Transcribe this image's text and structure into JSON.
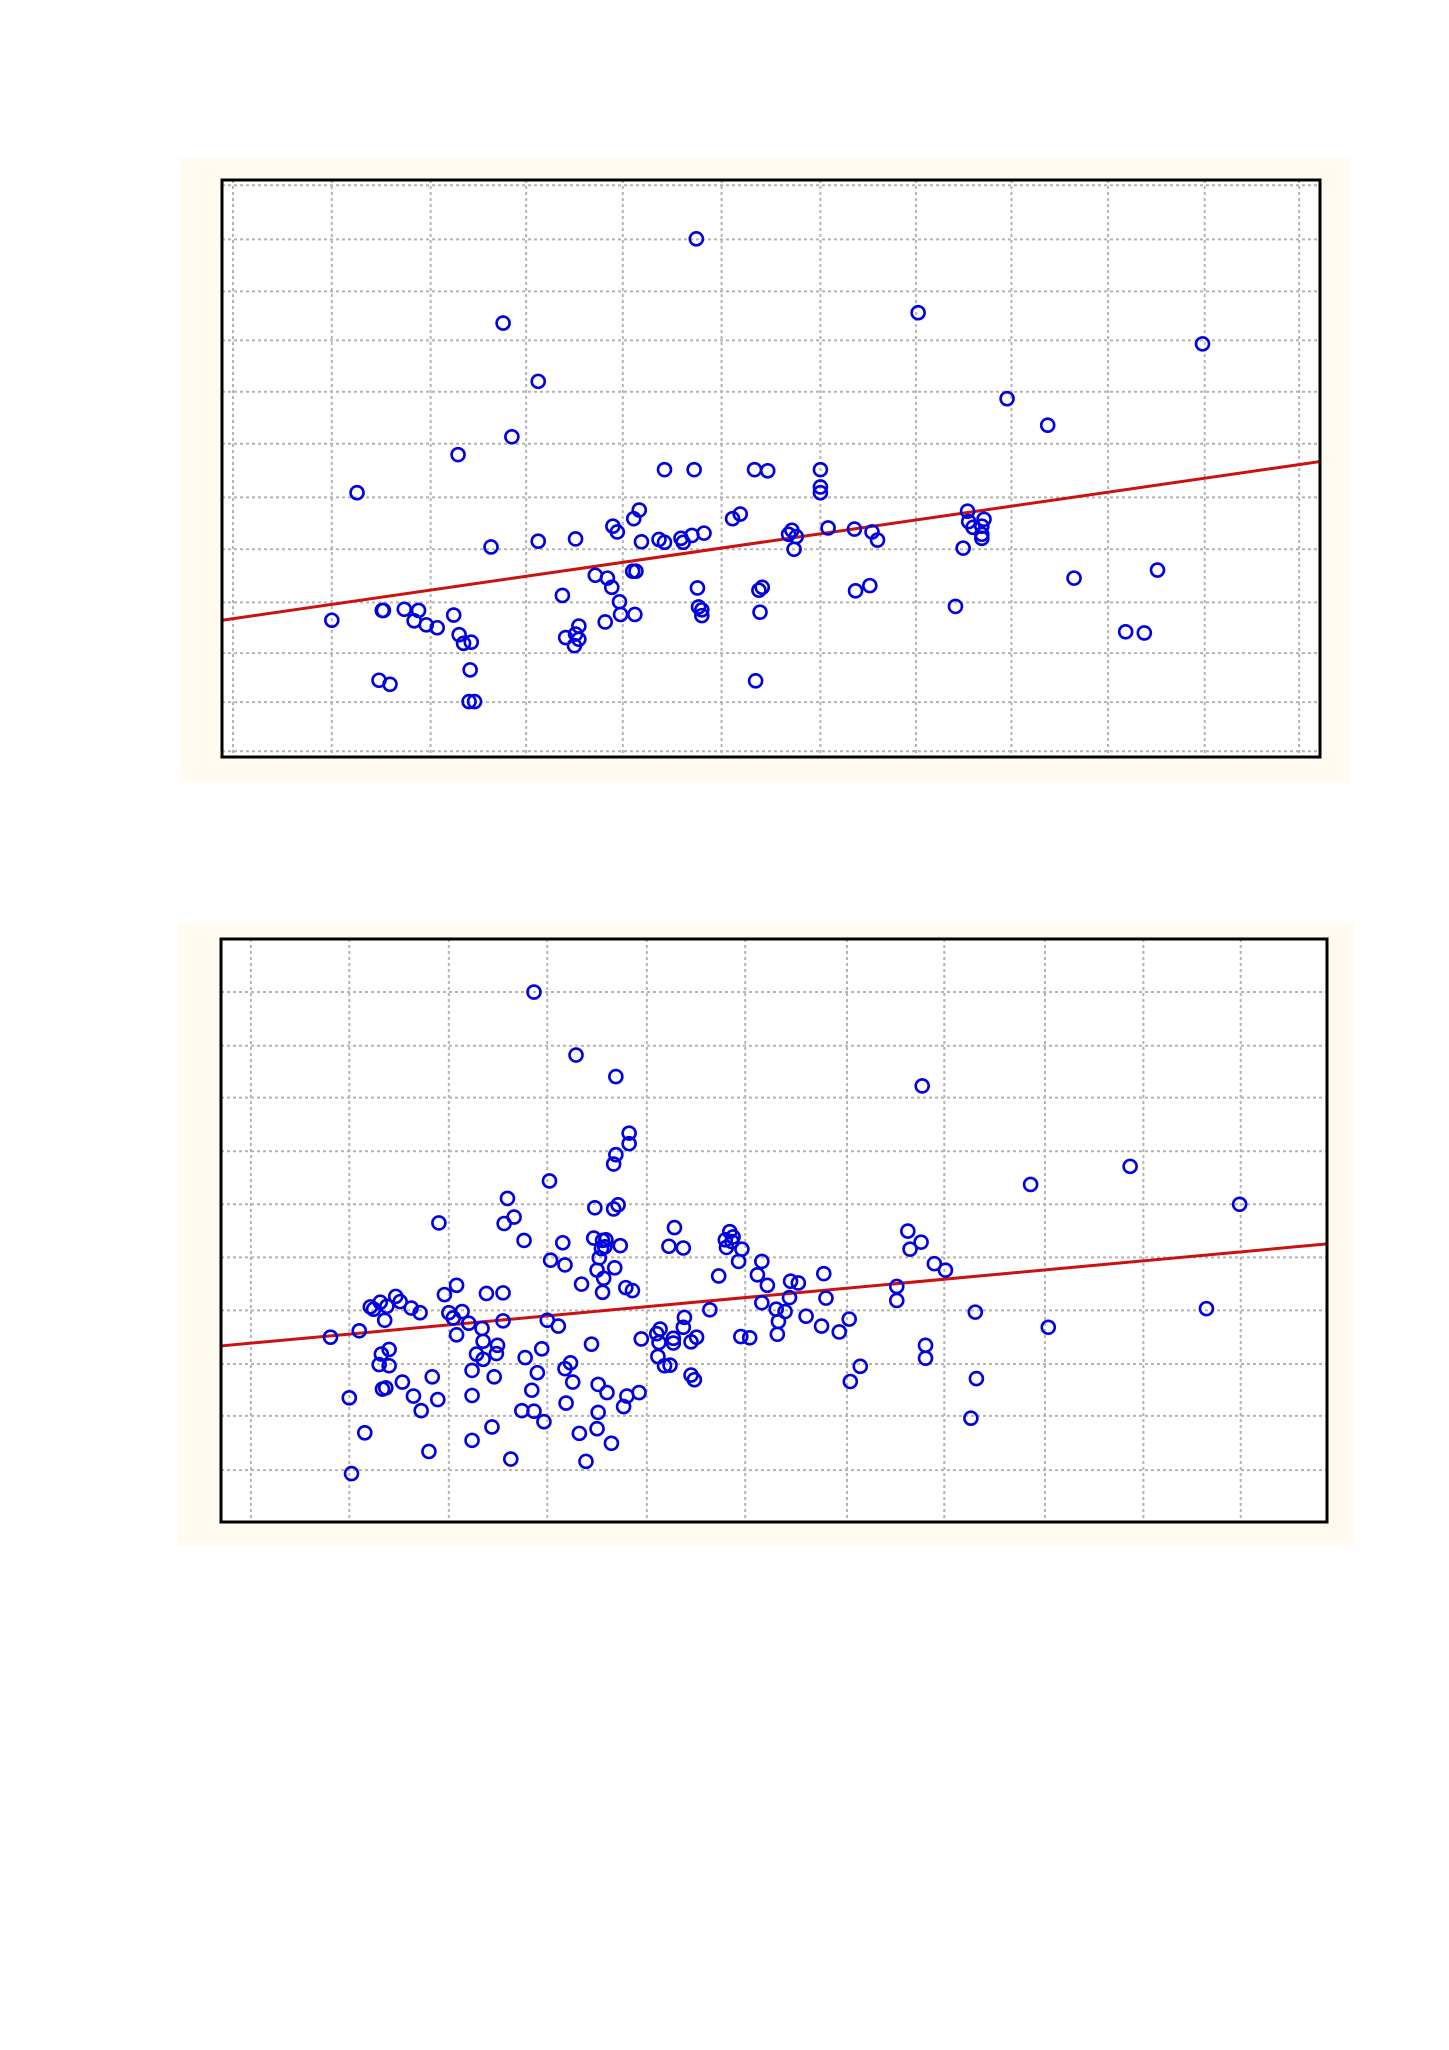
{
  "colors": {
    "panel_background": "#fffbf1",
    "plot_background": "#ffffff",
    "grid": "#b4b4b4",
    "marker": "#0000e0",
    "regression_line": "#cc1111",
    "frame": "#000000"
  },
  "chart_data": [
    {
      "type": "scatter",
      "marker": "open-circle",
      "grid": true,
      "xlim": [
        0,
        1000
      ],
      "ylim": [
        0,
        1000
      ],
      "x_gridlines": [
        10,
        100,
        190,
        277,
        365,
        455,
        545,
        632,
        719,
        807,
        895,
        981
      ],
      "y_gridlines": [
        10,
        95,
        180,
        268,
        360,
        450,
        543,
        633,
        722,
        807,
        897,
        991
      ],
      "regression_line": {
        "x": [
          0,
          1000
        ],
        "y": [
          237,
          512
        ]
      },
      "points": [
        [
          432,
          898
        ],
        [
          634,
          770
        ],
        [
          256,
          752
        ],
        [
          893,
          716
        ],
        [
          288,
          651
        ],
        [
          715,
          621
        ],
        [
          752,
          575
        ],
        [
          264,
          555
        ],
        [
          215,
          524
        ],
        [
          123,
          458
        ],
        [
          403,
          498
        ],
        [
          430,
          498
        ],
        [
          485,
          498
        ],
        [
          497,
          496
        ],
        [
          545,
          498
        ],
        [
          545,
          468
        ],
        [
          545,
          458
        ],
        [
          380,
          428
        ],
        [
          375,
          413
        ],
        [
          360,
          390
        ],
        [
          356,
          400
        ],
        [
          382,
          373
        ],
        [
          322,
          378
        ],
        [
          288,
          374
        ],
        [
          245,
          364
        ],
        [
          472,
          421
        ],
        [
          465,
          413
        ],
        [
          439,
          388
        ],
        [
          428,
          384
        ],
        [
          418,
          379
        ],
        [
          420,
          372
        ],
        [
          403,
          372
        ],
        [
          398,
          377
        ],
        [
          519,
          393
        ],
        [
          523,
          382
        ],
        [
          521,
          360
        ],
        [
          516,
          386
        ],
        [
          552,
          397
        ],
        [
          576,
          395
        ],
        [
          592,
          390
        ],
        [
          597,
          376
        ],
        [
          679,
          426
        ],
        [
          680,
          408
        ],
        [
          684,
          398
        ],
        [
          694,
          412
        ],
        [
          692,
          400
        ],
        [
          692,
          386
        ],
        [
          692,
          379
        ],
        [
          675,
          362
        ],
        [
          776,
          310
        ],
        [
          852,
          324
        ],
        [
          590,
          297
        ],
        [
          577,
          288
        ],
        [
          492,
          294
        ],
        [
          489,
          289
        ],
        [
          490,
          251
        ],
        [
          433,
          293
        ],
        [
          434,
          260
        ],
        [
          437,
          255
        ],
        [
          377,
          322
        ],
        [
          374,
          322
        ],
        [
          351,
          310
        ],
        [
          340,
          315
        ],
        [
          355,
          294
        ],
        [
          310,
          280
        ],
        [
          362,
          269
        ],
        [
          437,
          245
        ],
        [
          376,
          247
        ],
        [
          363,
          247
        ],
        [
          349,
          234
        ],
        [
          325,
          227
        ],
        [
          322,
          213
        ],
        [
          313,
          207
        ],
        [
          325,
          204
        ],
        [
          321,
          193
        ],
        [
          216,
          212
        ],
        [
          211,
          246
        ],
        [
          196,
          224
        ],
        [
          186,
          229
        ],
        [
          175,
          236
        ],
        [
          166,
          256
        ],
        [
          179,
          254
        ],
        [
          147,
          254
        ],
        [
          146,
          254
        ],
        [
          100,
          237
        ],
        [
          227,
          199
        ],
        [
          220,
          197
        ],
        [
          226,
          151
        ],
        [
          143,
          133
        ],
        [
          153,
          126
        ],
        [
          230,
          96
        ],
        [
          225,
          96
        ],
        [
          486,
          132
        ],
        [
          668,
          261
        ],
        [
          823,
          217
        ],
        [
          840,
          215
        ]
      ]
    },
    {
      "type": "scatter",
      "marker": "open-circle",
      "grid": true,
      "xlim": [
        0,
        1000
      ],
      "ylim": [
        0,
        1000
      ],
      "x_gridlines": [
        27,
        116,
        206,
        295,
        385,
        474,
        566,
        654,
        745,
        834,
        922
      ],
      "y_gridlines": [
        89,
        182,
        271,
        363,
        454,
        545,
        636,
        728,
        817,
        909
      ],
      "regression_line": {
        "x": [
          0,
          1000
        ],
        "y": [
          302,
          477
        ]
      },
      "points": [
        [
          283,
          909
        ],
        [
          321,
          801
        ],
        [
          357,
          764
        ],
        [
          634,
          748
        ],
        [
          822,
          610
        ],
        [
          732,
          579
        ],
        [
          921,
          545
        ],
        [
          369,
          667
        ],
        [
          369,
          649
        ],
        [
          357,
          630
        ],
        [
          355,
          614
        ],
        [
          297,
          585
        ],
        [
          338,
          539
        ],
        [
          355,
          537
        ],
        [
          359,
          544
        ],
        [
          259,
          555
        ],
        [
          265,
          523
        ],
        [
          256,
          512
        ],
        [
          197,
          513
        ],
        [
          274,
          483
        ],
        [
          309,
          479
        ],
        [
          298,
          449
        ],
        [
          342,
          453
        ],
        [
          361,
          474
        ],
        [
          347,
          472
        ],
        [
          311,
          441
        ],
        [
          340,
          432
        ],
        [
          356,
          436
        ],
        [
          346,
          418
        ],
        [
          366,
          402
        ],
        [
          372,
          397
        ],
        [
          345,
          394
        ],
        [
          326,
          408
        ],
        [
          345,
          483
        ],
        [
          337,
          487
        ],
        [
          344,
          469
        ],
        [
          348,
          484
        ],
        [
          418,
          470
        ],
        [
          410,
          505
        ],
        [
          405,
          473
        ],
        [
          460,
          498
        ],
        [
          456,
          484
        ],
        [
          457,
          471
        ],
        [
          463,
          489
        ],
        [
          462,
          481
        ],
        [
          471,
          468
        ],
        [
          468,
          447
        ],
        [
          485,
          424
        ],
        [
          489,
          376
        ],
        [
          450,
          422
        ],
        [
          489,
          447
        ],
        [
          494,
          406
        ],
        [
          545,
          426
        ],
        [
          522,
          410
        ],
        [
          514,
          385
        ],
        [
          502,
          365
        ],
        [
          529,
          353
        ],
        [
          504,
          344
        ],
        [
          543,
          336
        ],
        [
          559,
          326
        ],
        [
          503,
          322
        ],
        [
          478,
          316
        ],
        [
          470,
          318
        ],
        [
          419,
          351
        ],
        [
          418,
          334
        ],
        [
          397,
          331
        ],
        [
          394,
          323
        ],
        [
          380,
          314
        ],
        [
          396,
          308
        ],
        [
          409,
          307
        ],
        [
          430,
          317
        ],
        [
          401,
          268
        ],
        [
          406,
          269
        ],
        [
          428,
          244
        ],
        [
          378,
          222
        ],
        [
          367,
          216
        ],
        [
          341,
          236
        ],
        [
          318,
          240
        ],
        [
          311,
          263
        ],
        [
          286,
          256
        ],
        [
          275,
          282
        ],
        [
          290,
          297
        ],
        [
          295,
          346
        ],
        [
          305,
          336
        ],
        [
          335,
          305
        ],
        [
          316,
          273
        ],
        [
          312,
          204
        ],
        [
          292,
          172
        ],
        [
          272,
          191
        ],
        [
          283,
          190
        ],
        [
          281,
          226
        ],
        [
          227,
          217
        ],
        [
          227,
          260
        ],
        [
          237,
          279
        ],
        [
          231,
          288
        ],
        [
          247,
          249
        ],
        [
          249,
          289
        ],
        [
          237,
          310
        ],
        [
          224,
          341
        ],
        [
          218,
          361
        ],
        [
          213,
          321
        ],
        [
          191,
          249
        ],
        [
          196,
          210
        ],
        [
          164,
          240
        ],
        [
          152,
          268
        ],
        [
          145,
          288
        ],
        [
          125,
          328
        ],
        [
          180,
          359
        ],
        [
          172,
          367
        ],
        [
          162,
          378
        ],
        [
          158,
          387
        ],
        [
          210,
          350
        ],
        [
          240,
          392
        ],
        [
          255,
          393
        ],
        [
          206,
          359
        ],
        [
          202,
          390
        ],
        [
          213,
          406
        ],
        [
          236,
          332
        ],
        [
          255,
          345
        ],
        [
          250,
          303
        ],
        [
          395,
          284
        ],
        [
          409,
          315
        ],
        [
          442,
          364
        ],
        [
          510,
          361
        ],
        [
          515,
          413
        ],
        [
          547,
          384
        ],
        [
          568,
          348
        ],
        [
          578,
          267
        ],
        [
          611,
          380
        ],
        [
          611,
          404
        ],
        [
          682,
          360
        ],
        [
          748,
          334
        ],
        [
          891,
          366
        ],
        [
          623,
          468
        ],
        [
          633,
          480
        ],
        [
          621,
          499
        ],
        [
          645,
          443
        ],
        [
          655,
          432
        ],
        [
          637,
          281
        ],
        [
          637,
          303
        ],
        [
          683,
          246
        ],
        [
          678,
          178
        ],
        [
          569,
          241
        ],
        [
          425,
          309
        ],
        [
          425,
          252
        ],
        [
          349,
          222
        ],
        [
          364,
          198
        ],
        [
          341,
          188
        ],
        [
          340,
          160
        ],
        [
          353,
          135
        ],
        [
          324,
          152
        ],
        [
          330,
          104
        ],
        [
          262,
          108
        ],
        [
          245,
          163
        ],
        [
          227,
          140
        ],
        [
          188,
          121
        ],
        [
          130,
          153
        ],
        [
          116,
          213
        ],
        [
          99,
          317
        ],
        [
          148,
          346
        ],
        [
          150,
          370
        ],
        [
          144,
          377
        ],
        [
          135,
          369
        ],
        [
          138,
          365
        ],
        [
          152,
          296
        ],
        [
          143,
          270
        ],
        [
          149,
          230
        ],
        [
          146,
          228
        ],
        [
          174,
          216
        ],
        [
          181,
          191
        ],
        [
          118,
          83
        ]
      ]
    }
  ]
}
